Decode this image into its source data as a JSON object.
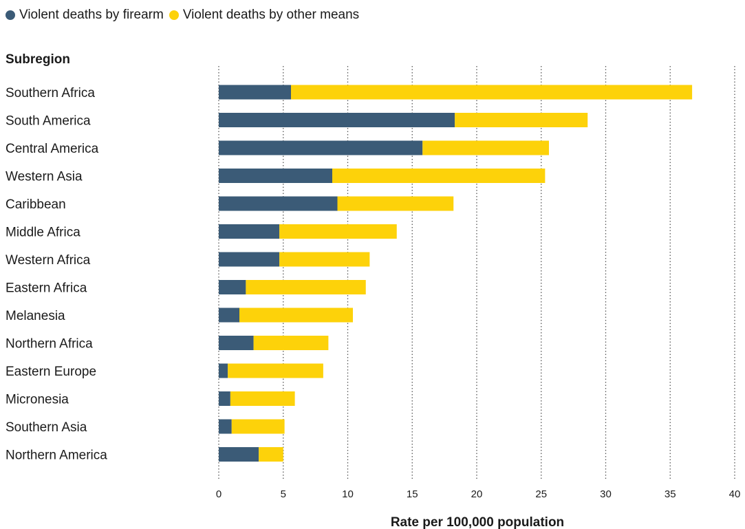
{
  "chart_data": {
    "type": "bar",
    "orientation": "horizontal",
    "stacked": true,
    "title": "",
    "category_header": "Subregion",
    "xlabel": "Rate per 100,000 population",
    "ylabel": "",
    "xlim": [
      0,
      40
    ],
    "x_ticks": [
      0,
      5,
      10,
      15,
      20,
      25,
      30,
      35,
      40
    ],
    "grid": "vertical dotted",
    "legend_position": "top-left",
    "categories": [
      "Southern Africa",
      "South America",
      "Central America",
      "Western Asia",
      "Caribbean",
      "Middle Africa",
      "Western Africa",
      "Eastern Africa",
      "Melanesia",
      "Northern Africa",
      "Eastern Europe",
      "Micronesia",
      "Southern Asia",
      "Northern America"
    ],
    "series": [
      {
        "name": "Violent deaths by firearm",
        "color": "#3b5b77",
        "values": [
          5.6,
          18.3,
          15.8,
          8.8,
          9.2,
          4.7,
          4.7,
          2.1,
          1.6,
          2.7,
          0.7,
          0.9,
          1.0,
          3.1
        ]
      },
      {
        "name": "Violent deaths by other means",
        "color": "#fdd20a",
        "values": [
          31.1,
          10.3,
          9.8,
          16.5,
          9.0,
          9.1,
          7.0,
          9.3,
          8.8,
          5.8,
          7.4,
          5.0,
          4.1,
          1.9
        ]
      }
    ]
  }
}
